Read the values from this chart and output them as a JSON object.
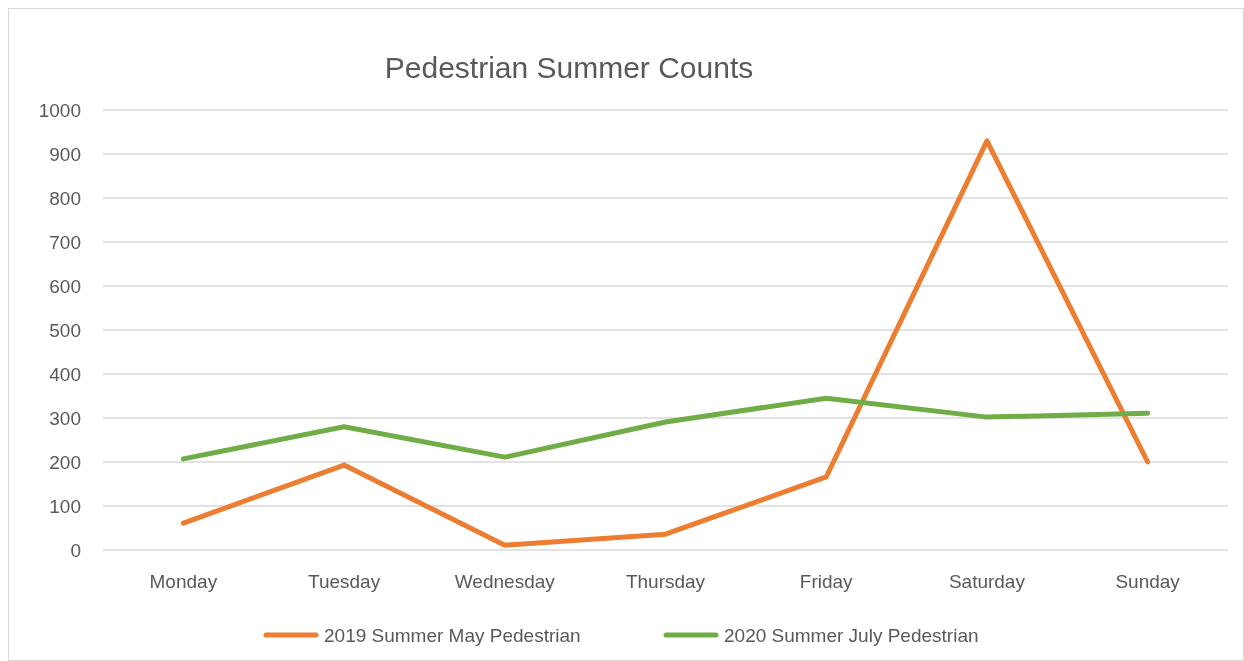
{
  "chart_data": {
    "type": "line",
    "title": "Pedestrian Summer Counts",
    "categories": [
      "Monday",
      "Tuesday",
      "Wednesday",
      "Thursday",
      "Friday",
      "Saturday",
      "Sunday"
    ],
    "series": [
      {
        "name": "2019 Summer May Pedestrian",
        "color": "#ed7d31",
        "values": [
          61,
          193,
          11,
          36,
          166,
          930,
          200
        ]
      },
      {
        "name": "2020 Summer July Pedestrian",
        "color": "#70ad47",
        "values": [
          207,
          280,
          211,
          291,
          345,
          302,
          311
        ]
      }
    ],
    "ylim": [
      0,
      1000
    ],
    "yticks": [
      0,
      100,
      200,
      300,
      400,
      500,
      600,
      700,
      800,
      900,
      1000
    ],
    "grid": "y",
    "legend": "bottom",
    "marker": "none",
    "line_style": "solid"
  }
}
